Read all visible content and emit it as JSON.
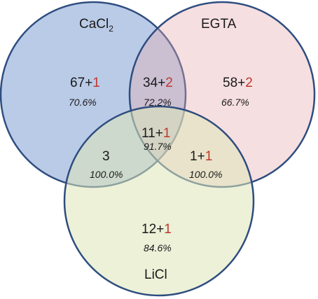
{
  "sets": [
    {
      "id": "cacl2",
      "name_main": "CaCl",
      "name_sub": "2",
      "fill": "#4a76c1",
      "stroke": "#2e4d7f"
    },
    {
      "id": "egta",
      "name": "EGTA",
      "fill": "#e8aab0",
      "stroke": "#2e4d7f"
    },
    {
      "id": "licl",
      "name": "LiCl",
      "fill": "#dce6b8",
      "stroke": "#2e4d7f"
    }
  ],
  "regions": {
    "cacl2_only": {
      "base": "67",
      "plus": "+",
      "extra": "1",
      "pct": "70.6%"
    },
    "cacl2_egta": {
      "base": "34",
      "plus": "+",
      "extra": "2",
      "pct": "72.2%"
    },
    "egta_only": {
      "base": "58",
      "plus": "+",
      "extra": "2",
      "pct": "66.7%"
    },
    "all_three": {
      "base": "11",
      "plus": "+",
      "extra": "1",
      "pct": "91.7%"
    },
    "cacl2_licl": {
      "base": "3",
      "pct": "100.0%"
    },
    "egta_licl": {
      "base": "1",
      "plus": "+",
      "extra": "1",
      "pct": "100.0%"
    },
    "licl_only": {
      "base": "12",
      "plus": "+",
      "extra": "1",
      "pct": "84.6%"
    }
  },
  "colors": {
    "extra_text": "#c0392b",
    "text": "#1a1a1a"
  }
}
